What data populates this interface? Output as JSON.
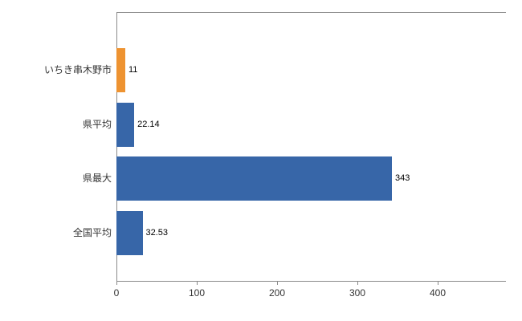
{
  "chart_data": {
    "type": "bar",
    "orientation": "horizontal",
    "title": "",
    "xlabel": "",
    "ylabel": "",
    "categories": [
      "いちき串木野市",
      "県平均",
      "県最大",
      "全国平均"
    ],
    "values": [
      11,
      22.14,
      343,
      32.53
    ],
    "value_labels": [
      "11",
      "22.14",
      "343",
      "32.53"
    ],
    "series": [
      {
        "name": "value",
        "values": [
          11,
          22.14,
          343,
          32.53
        ]
      }
    ],
    "bar_colors": [
      "#ee9331",
      "#3766a8",
      "#3766a8",
      "#3766a8"
    ],
    "x_ticks": [
      0,
      100,
      200,
      300,
      400
    ],
    "x_tick_labels": [
      "0",
      "100",
      "200",
      "300",
      "400"
    ],
    "xlim": [
      0,
      400
    ],
    "grid": false,
    "legend": "none"
  },
  "colors": {
    "axis": "#8a8a8a",
    "category_text": "#333333",
    "value_text": "#000000",
    "tick_text": "#333333",
    "bar_blue": "#3766a8",
    "bar_orange": "#ee9331",
    "background": "#ffffff"
  }
}
